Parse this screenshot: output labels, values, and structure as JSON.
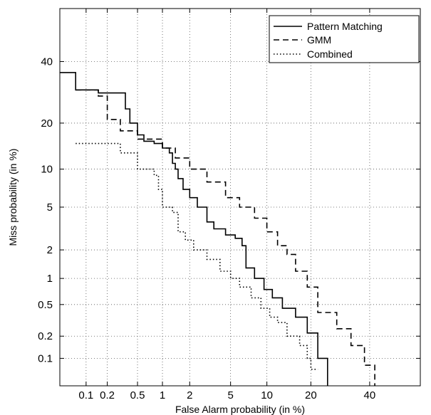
{
  "chart_data": {
    "type": "line",
    "title": "",
    "xlabel": "False Alarm probability (in %)",
    "ylabel": "Miss probability (in %)",
    "x_scale": "normal-deviate",
    "y_scale": "normal-deviate",
    "xlim": [
      0.04,
      60
    ],
    "ylim": [
      0.04,
      60
    ],
    "grid": true,
    "legend_position": "top-right",
    "x_ticks": [
      0.1,
      0.2,
      0.5,
      1,
      2,
      5,
      10,
      20,
      40
    ],
    "x_tick_labels": [
      "0.1",
      "0.2",
      "0.5",
      "1",
      "2",
      "5",
      "10",
      "20",
      "40"
    ],
    "y_ticks": [
      0.1,
      0.2,
      0.5,
      1,
      2,
      5,
      10,
      20,
      40
    ],
    "y_tick_labels": [
      "0.1",
      "0.2",
      "0.5",
      "1",
      "2",
      "5",
      "10",
      "20",
      "40"
    ],
    "series": [
      {
        "name": "Pattern Matching",
        "style": "solid",
        "x": [
          0.04,
          0.07,
          0.07,
          0.15,
          0.15,
          0.35,
          0.35,
          0.4,
          0.4,
          0.5,
          0.5,
          0.6,
          0.6,
          0.8,
          0.8,
          1.0,
          1.0,
          1.2,
          1.2,
          1.3,
          1.3,
          1.4,
          1.4,
          1.5,
          1.5,
          1.7,
          1.7,
          2.0,
          2.0,
          2.4,
          2.4,
          3.0,
          3.0,
          3.5,
          3.5,
          4.5,
          4.5,
          5.5,
          5.5,
          6.3,
          6.3,
          6.8,
          6.8,
          8.0,
          8.0,
          9.5,
          9.5,
          11.0,
          11.0,
          13.0,
          13.0,
          16.0,
          16.0,
          19.0,
          19.0,
          22.0,
          22.0,
          25.0,
          25.0
        ],
        "y": [
          36,
          36,
          30,
          30,
          29,
          29,
          24,
          24,
          20,
          20,
          17,
          17,
          15.5,
          15.5,
          15,
          15,
          14,
          14,
          13,
          13,
          11,
          11,
          10,
          10,
          8.5,
          8.5,
          7,
          7,
          6,
          6,
          5,
          5,
          3.7,
          3.7,
          3.2,
          3.2,
          2.8,
          2.8,
          2.6,
          2.6,
          2.2,
          2.2,
          1.3,
          1.3,
          1.0,
          1.0,
          0.75,
          0.75,
          0.6,
          0.6,
          0.45,
          0.45,
          0.35,
          0.35,
          0.22,
          0.22,
          0.1,
          0.1,
          0.04
        ]
      },
      {
        "name": "GMM",
        "style": "dashed",
        "x": [
          0.07,
          0.15,
          0.15,
          0.2,
          0.2,
          0.3,
          0.3,
          0.5,
          0.5,
          1.0,
          1.0,
          1.4,
          1.4,
          2.0,
          2.0,
          3.0,
          3.0,
          4.5,
          4.5,
          6.0,
          6.0,
          8.0,
          8.0,
          10.0,
          10.0,
          12.0,
          12.0,
          14.0,
          14.0,
          16.0,
          16.0,
          19.0,
          19.0,
          22.0,
          22.0,
          28.0,
          28.0,
          33.0,
          33.0,
          38.0,
          38.0,
          42.0,
          42.0
        ],
        "y": [
          30,
          30,
          28,
          28,
          21,
          21,
          18,
          18,
          16,
          16,
          14,
          14,
          12,
          12,
          10,
          10,
          8,
          8,
          6,
          6,
          5,
          5,
          4,
          4,
          3,
          3,
          2.2,
          2.2,
          1.8,
          1.8,
          1.2,
          1.2,
          0.8,
          0.8,
          0.4,
          0.4,
          0.25,
          0.25,
          0.15,
          0.15,
          0.08,
          0.08,
          0.04
        ]
      },
      {
        "name": "Combined",
        "style": "dotted",
        "x": [
          0.07,
          0.3,
          0.3,
          0.5,
          0.5,
          0.8,
          0.8,
          0.9,
          0.9,
          1.0,
          1.0,
          1.3,
          1.3,
          1.5,
          1.5,
          1.8,
          1.8,
          2.2,
          2.2,
          3.0,
          3.0,
          4.0,
          4.0,
          5.0,
          5.0,
          6.0,
          6.0,
          7.5,
          7.5,
          9.0,
          9.0,
          10.5,
          10.5,
          12.0,
          12.0,
          14.0,
          14.0,
          17.0,
          17.0,
          19.0,
          19.0,
          20.0,
          20.0,
          22.0
        ],
        "y": [
          15,
          15,
          13,
          13,
          10,
          10,
          9,
          9,
          7,
          7,
          5,
          5,
          4.5,
          4.5,
          3,
          3,
          2.5,
          2.5,
          2,
          2,
          1.6,
          1.6,
          1.2,
          1.2,
          1.0,
          1.0,
          0.8,
          0.8,
          0.6,
          0.6,
          0.45,
          0.45,
          0.35,
          0.35,
          0.3,
          0.3,
          0.2,
          0.2,
          0.15,
          0.15,
          0.1,
          0.1,
          0.07,
          0.07
        ]
      }
    ]
  }
}
